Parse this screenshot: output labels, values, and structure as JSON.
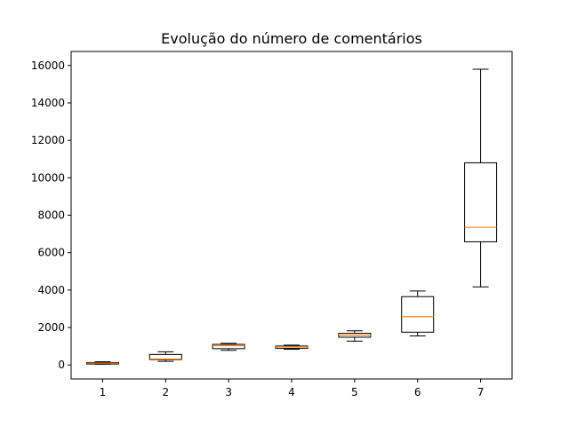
{
  "chart_data": {
    "type": "box",
    "title": "Evolução do número de comentários",
    "xlabel": "",
    "ylabel": "",
    "categories": [
      "1",
      "2",
      "3",
      "4",
      "5",
      "6",
      "7"
    ],
    "ylim": [
      -750,
      16750
    ],
    "yticks": [
      0,
      2000,
      4000,
      6000,
      8000,
      10000,
      12000,
      14000,
      16000
    ],
    "boxes": [
      {
        "category": "1",
        "whisker_low": 40,
        "q1": 50,
        "median": 100,
        "q3": 130,
        "whisker_high": 170
      },
      {
        "category": "2",
        "whisker_low": 190,
        "q1": 280,
        "median": 310,
        "q3": 560,
        "whisker_high": 700
      },
      {
        "category": "3",
        "whisker_low": 780,
        "q1": 870,
        "median": 1030,
        "q3": 1100,
        "whisker_high": 1150
      },
      {
        "category": "4",
        "whisker_low": 840,
        "q1": 890,
        "median": 970,
        "q3": 1010,
        "whisker_high": 1060
      },
      {
        "category": "5",
        "whisker_low": 1270,
        "q1": 1480,
        "median": 1590,
        "q3": 1690,
        "whisker_high": 1820
      },
      {
        "category": "6",
        "whisker_low": 1550,
        "q1": 1750,
        "median": 2580,
        "q3": 3650,
        "whisker_high": 3950
      },
      {
        "category": "7",
        "whisker_low": 4170,
        "q1": 6580,
        "median": 7350,
        "q3": 10800,
        "whisker_high": 15800
      }
    ],
    "colors": {
      "box": "#000000",
      "median": "#ff7f0e",
      "axis": "#000000",
      "background": "#ffffff"
    },
    "grid": false,
    "legend": "none"
  }
}
